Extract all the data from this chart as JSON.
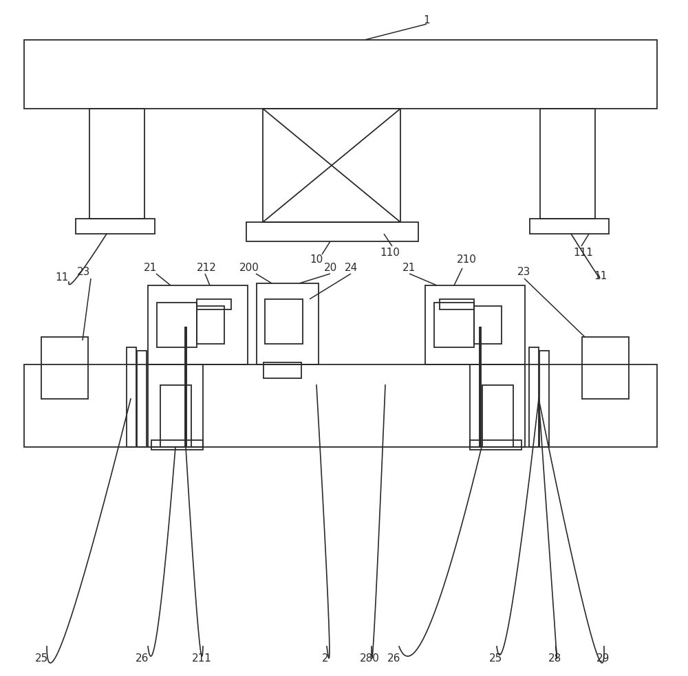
{
  "bg_color": "#ffffff",
  "lc": "#2a2a2a",
  "lw": 1.3,
  "tlw": 2.8
}
